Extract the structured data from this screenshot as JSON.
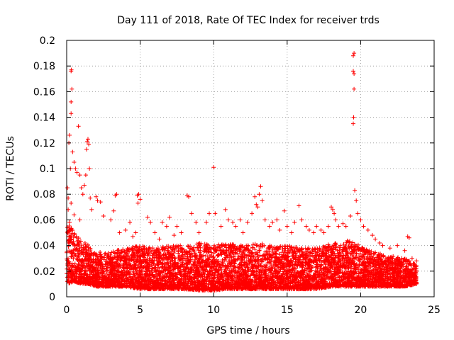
{
  "chart_data": {
    "type": "scatter",
    "title": "Day 111 of 2018, Rate Of TEC Index for receiver trds",
    "xlabel": "GPS time / hours",
    "ylabel": "ROTI / TECUs",
    "xlim": [
      0,
      25
    ],
    "ylim": [
      0,
      0.2
    ],
    "xticks": [
      "0",
      "5",
      "10",
      "15",
      "20",
      "25"
    ],
    "yticks": [
      "0",
      "0.02",
      "0.04",
      "0.06",
      "0.08",
      "0.1",
      "0.12",
      "0.14",
      "0.16",
      "0.18",
      "0.2"
    ],
    "grid": true,
    "marker": "plus",
    "color": "#ff0000",
    "series": [
      {
        "name": "ROTI",
        "points": [
          [
            0.1,
            0.077
          ],
          [
            0.15,
            0.12
          ],
          [
            0.2,
            0.126
          ],
          [
            0.25,
            0.1
          ],
          [
            0.3,
            0.176
          ],
          [
            0.32,
            0.177
          ],
          [
            0.35,
            0.162
          ],
          [
            0.3,
            0.152
          ],
          [
            0.3,
            0.143
          ],
          [
            0.4,
            0.113
          ],
          [
            0.5,
            0.105
          ],
          [
            0.6,
            0.1
          ],
          [
            0.7,
            0.097
          ],
          [
            0.8,
            0.133
          ],
          [
            0.9,
            0.095
          ],
          [
            1.0,
            0.085
          ],
          [
            1.1,
            0.08
          ],
          [
            1.2,
            0.087
          ],
          [
            1.3,
            0.095
          ],
          [
            1.35,
            0.115
          ],
          [
            1.4,
            0.121
          ],
          [
            1.45,
            0.123
          ],
          [
            1.5,
            0.119
          ],
          [
            1.55,
            0.1
          ],
          [
            0.05,
            0.085
          ],
          [
            0.1,
            0.068
          ],
          [
            0.2,
            0.058
          ],
          [
            0.3,
            0.073
          ],
          [
            0.5,
            0.064
          ],
          [
            0.9,
            0.06
          ],
          [
            1.6,
            0.077
          ],
          [
            1.7,
            0.068
          ],
          [
            2.0,
            0.078
          ],
          [
            2.1,
            0.075
          ],
          [
            2.3,
            0.074
          ],
          [
            2.5,
            0.063
          ],
          [
            3.3,
            0.079
          ],
          [
            3.4,
            0.08
          ],
          [
            3.2,
            0.067
          ],
          [
            3.0,
            0.06
          ],
          [
            3.6,
            0.05
          ],
          [
            4.0,
            0.052
          ],
          [
            4.3,
            0.058
          ],
          [
            4.5,
            0.047
          ],
          [
            4.7,
            0.05
          ],
          [
            4.8,
            0.079
          ],
          [
            4.9,
            0.08
          ],
          [
            5.0,
            0.076
          ],
          [
            4.85,
            0.073
          ],
          [
            5.5,
            0.062
          ],
          [
            5.7,
            0.058
          ],
          [
            6.0,
            0.05
          ],
          [
            6.3,
            0.045
          ],
          [
            6.5,
            0.058
          ],
          [
            6.8,
            0.055
          ],
          [
            7.0,
            0.062
          ],
          [
            7.3,
            0.048
          ],
          [
            7.5,
            0.055
          ],
          [
            7.8,
            0.05
          ],
          [
            8.2,
            0.079
          ],
          [
            8.3,
            0.078
          ],
          [
            8.5,
            0.065
          ],
          [
            8.8,
            0.058
          ],
          [
            9.0,
            0.05
          ],
          [
            9.5,
            0.058
          ],
          [
            9.7,
            0.065
          ],
          [
            10.0,
            0.101
          ],
          [
            10.1,
            0.065
          ],
          [
            10.5,
            0.055
          ],
          [
            10.8,
            0.068
          ],
          [
            11.0,
            0.06
          ],
          [
            11.3,
            0.058
          ],
          [
            11.5,
            0.055
          ],
          [
            11.8,
            0.06
          ],
          [
            12.0,
            0.05
          ],
          [
            12.3,
            0.058
          ],
          [
            12.6,
            0.065
          ],
          [
            12.8,
            0.078
          ],
          [
            12.9,
            0.072
          ],
          [
            13.0,
            0.07
          ],
          [
            13.1,
            0.08
          ],
          [
            13.2,
            0.086
          ],
          [
            13.3,
            0.075
          ],
          [
            13.5,
            0.06
          ],
          [
            13.8,
            0.055
          ],
          [
            14.0,
            0.058
          ],
          [
            14.3,
            0.06
          ],
          [
            14.5,
            0.052
          ],
          [
            14.8,
            0.067
          ],
          [
            15.0,
            0.055
          ],
          [
            15.3,
            0.05
          ],
          [
            15.5,
            0.058
          ],
          [
            15.8,
            0.071
          ],
          [
            16.0,
            0.06
          ],
          [
            16.3,
            0.055
          ],
          [
            16.5,
            0.052
          ],
          [
            16.8,
            0.05
          ],
          [
            17.0,
            0.055
          ],
          [
            17.3,
            0.052
          ],
          [
            17.5,
            0.05
          ],
          [
            17.8,
            0.055
          ],
          [
            18.0,
            0.07
          ],
          [
            18.1,
            0.068
          ],
          [
            18.2,
            0.065
          ],
          [
            18.3,
            0.06
          ],
          [
            18.5,
            0.055
          ],
          [
            18.8,
            0.057
          ],
          [
            19.0,
            0.055
          ],
          [
            19.3,
            0.063
          ],
          [
            19.5,
            0.135
          ],
          [
            19.52,
            0.14
          ],
          [
            19.55,
            0.162
          ],
          [
            19.5,
            0.176
          ],
          [
            19.55,
            0.174
          ],
          [
            19.5,
            0.188
          ],
          [
            19.55,
            0.19
          ],
          [
            19.6,
            0.083
          ],
          [
            19.7,
            0.075
          ],
          [
            19.8,
            0.065
          ],
          [
            20.0,
            0.06
          ],
          [
            20.2,
            0.055
          ],
          [
            20.5,
            0.052
          ],
          [
            20.8,
            0.048
          ],
          [
            21.0,
            0.045
          ],
          [
            21.3,
            0.042
          ],
          [
            21.5,
            0.04
          ],
          [
            22.0,
            0.038
          ],
          [
            22.5,
            0.04
          ],
          [
            23.0,
            0.036
          ],
          [
            23.2,
            0.047
          ],
          [
            23.3,
            0.046
          ],
          [
            23.5,
            0.03
          ],
          [
            23.8,
            0.028
          ]
        ],
        "dense_band": [
          [
            0.0,
            0.01,
            0.06
          ],
          [
            0.5,
            0.012,
            0.05
          ],
          [
            1.0,
            0.01,
            0.045
          ],
          [
            1.5,
            0.01,
            0.04
          ],
          [
            2.0,
            0.008,
            0.035
          ],
          [
            3.0,
            0.008,
            0.035
          ],
          [
            4.0,
            0.008,
            0.038
          ],
          [
            5.0,
            0.006,
            0.04
          ],
          [
            6.0,
            0.006,
            0.038
          ],
          [
            7.0,
            0.006,
            0.04
          ],
          [
            8.0,
            0.006,
            0.04
          ],
          [
            9.0,
            0.005,
            0.042
          ],
          [
            10.0,
            0.005,
            0.04
          ],
          [
            11.0,
            0.006,
            0.042
          ],
          [
            12.0,
            0.006,
            0.04
          ],
          [
            13.0,
            0.006,
            0.042
          ],
          [
            14.0,
            0.006,
            0.04
          ],
          [
            15.0,
            0.006,
            0.04
          ],
          [
            16.0,
            0.006,
            0.038
          ],
          [
            17.0,
            0.006,
            0.038
          ],
          [
            18.0,
            0.008,
            0.042
          ],
          [
            19.0,
            0.008,
            0.045
          ],
          [
            20.0,
            0.008,
            0.04
          ],
          [
            21.0,
            0.008,
            0.035
          ],
          [
            22.0,
            0.008,
            0.032
          ],
          [
            23.0,
            0.008,
            0.03
          ],
          [
            23.8,
            0.01,
            0.025
          ]
        ]
      }
    ]
  }
}
